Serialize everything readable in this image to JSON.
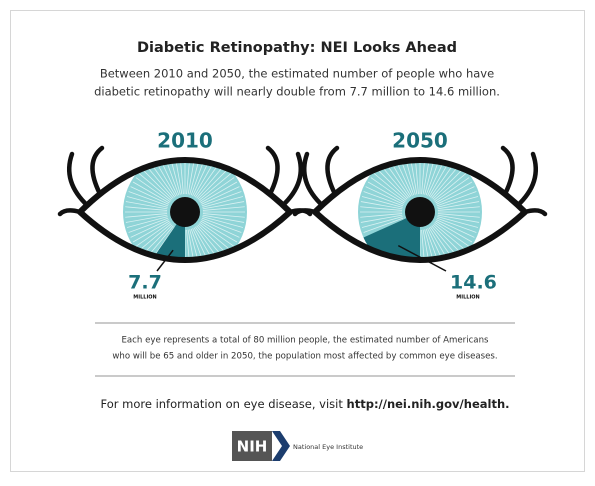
{
  "title": "Diabetic Retinopathy: NEI Looks Ahead",
  "subtitle": [
    "Between 2010 and 2050, the estimated number of people who have",
    "diabetic retinopathy will nearly double from 7.7 million to 14.6 million."
  ],
  "total_millions": 80,
  "eyes": [
    {
      "year": "2010",
      "value": 7.7,
      "unit": "MILLION"
    },
    {
      "year": "2050",
      "value": 14.6,
      "unit": "MILLION"
    }
  ],
  "note": [
    "Each eye represents a total of 80 million people, the estimated number of Americans",
    "who will be 65 and older in 2050, the population most affected by common eye diseases."
  ],
  "footer": {
    "text": "For more information on eye disease, visit ",
    "link": "http://nei.nih.gov/health."
  },
  "logo": {
    "mark": "NIH",
    "name": "National Eye Institute"
  }
}
